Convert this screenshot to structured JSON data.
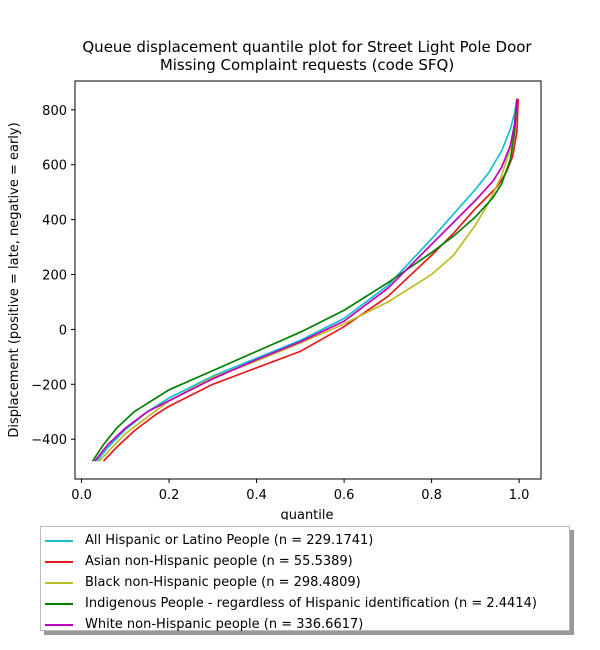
{
  "chart_data": {
    "type": "line",
    "title": "Queue displacement quantile plot for Street Light Pole Door\nMissing Complaint  requests (code SFQ)",
    "xlabel": "quantile",
    "ylabel": "Displacement (positive = late, negative = early)",
    "xlim": [
      -0.015,
      1.05
    ],
    "ylim": [
      -545,
      905
    ],
    "x_ticks": [
      0.0,
      0.2,
      0.4,
      0.6,
      0.8,
      1.0
    ],
    "x_tick_labels": [
      "0.0",
      "0.2",
      "0.4",
      "0.6",
      "0.8",
      "1.0"
    ],
    "y_ticks": [
      -400,
      -200,
      0,
      200,
      400,
      600,
      800
    ],
    "y_tick_labels": [
      "−400",
      "−200",
      "0",
      "200",
      "400",
      "600",
      "800"
    ],
    "grid": false,
    "legend_position": "below",
    "series": [
      {
        "name": "All Hispanic or Latino People (n = 229.1741)",
        "color": "#17becf",
        "x": [
          0.035,
          0.06,
          0.1,
          0.15,
          0.2,
          0.3,
          0.4,
          0.5,
          0.6,
          0.7,
          0.8,
          0.85,
          0.9,
          0.93,
          0.96,
          0.98,
          0.99,
          0.995
        ],
        "y": [
          -480,
          -430,
          -365,
          -300,
          -250,
          -170,
          -105,
          -40,
          40,
          160,
          330,
          420,
          510,
          570,
          650,
          730,
          790,
          840
        ]
      },
      {
        "name": "Asian non-Hispanic people (n = 55.5389)",
        "color": "#e41a1c",
        "x": [
          0.05,
          0.08,
          0.12,
          0.17,
          0.2,
          0.3,
          0.4,
          0.5,
          0.6,
          0.7,
          0.8,
          0.85,
          0.9,
          0.95,
          0.97,
          0.985,
          0.995,
          0.998
        ],
        "y": [
          -480,
          -430,
          -370,
          -310,
          -280,
          -200,
          -140,
          -80,
          10,
          120,
          270,
          350,
          440,
          520,
          570,
          630,
          720,
          840
        ]
      },
      {
        "name": "Black non-Hispanic people (n = 298.4809)",
        "color": "#bcbd22",
        "x": [
          0.04,
          0.07,
          0.1,
          0.15,
          0.2,
          0.3,
          0.4,
          0.5,
          0.6,
          0.7,
          0.8,
          0.85,
          0.9,
          0.93,
          0.96,
          0.98,
          0.99,
          0.995
        ],
        "y": [
          -480,
          -430,
          -380,
          -320,
          -260,
          -175,
          -115,
          -50,
          20,
          100,
          200,
          270,
          380,
          460,
          560,
          660,
          750,
          840
        ]
      },
      {
        "name": "Indigenous People - regardless of Hispanic identification (n = 2.4414)",
        "color": "#008000",
        "x": [
          0.025,
          0.05,
          0.08,
          0.12,
          0.2,
          0.3,
          0.4,
          0.5,
          0.6,
          0.7,
          0.8,
          0.85,
          0.9,
          0.94,
          0.96,
          0.98,
          0.99,
          0.995
        ],
        "y": [
          -480,
          -420,
          -360,
          -300,
          -220,
          -150,
          -80,
          -10,
          70,
          170,
          280,
          340,
          410,
          480,
          530,
          620,
          720,
          840
        ]
      },
      {
        "name": "White non-Hispanic people (n = 336.6617)",
        "color": "#bf00bf",
        "x": [
          0.03,
          0.06,
          0.1,
          0.15,
          0.2,
          0.3,
          0.4,
          0.5,
          0.6,
          0.7,
          0.8,
          0.85,
          0.9,
          0.94,
          0.96,
          0.98,
          0.99,
          0.995
        ],
        "y": [
          -480,
          -420,
          -360,
          -300,
          -260,
          -180,
          -110,
          -45,
          30,
          150,
          310,
          390,
          470,
          540,
          590,
          670,
          750,
          840
        ]
      }
    ]
  }
}
